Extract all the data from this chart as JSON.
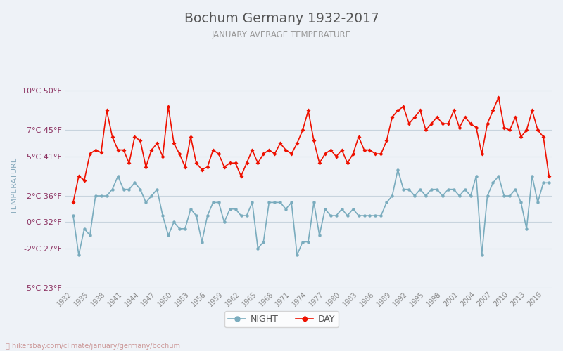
{
  "title": "Bochum Germany 1932-2017",
  "subtitle": "JANUARY AVERAGE TEMPERATURE",
  "ylabel": "TEMPERATURE",
  "legend_night": "NIGHT",
  "legend_day": "DAY",
  "years": [
    1932,
    1933,
    1934,
    1935,
    1936,
    1937,
    1938,
    1939,
    1940,
    1941,
    1942,
    1943,
    1944,
    1945,
    1946,
    1947,
    1948,
    1949,
    1950,
    1951,
    1952,
    1953,
    1954,
    1955,
    1956,
    1957,
    1958,
    1959,
    1960,
    1961,
    1962,
    1963,
    1964,
    1965,
    1966,
    1967,
    1968,
    1969,
    1970,
    1971,
    1972,
    1973,
    1974,
    1975,
    1976,
    1977,
    1978,
    1979,
    1980,
    1981,
    1982,
    1983,
    1984,
    1985,
    1986,
    1987,
    1988,
    1989,
    1990,
    1991,
    1992,
    1993,
    1994,
    1995,
    1996,
    1997,
    1998,
    1999,
    2000,
    2001,
    2002,
    2003,
    2004,
    2005,
    2006,
    2007,
    2008,
    2009,
    2010,
    2011,
    2012,
    2013,
    2014,
    2015,
    2016,
    2017
  ],
  "day": [
    1.5,
    3.5,
    3.2,
    5.2,
    5.5,
    5.3,
    8.5,
    6.5,
    5.5,
    5.5,
    4.5,
    6.5,
    6.2,
    4.2,
    5.5,
    6.0,
    5.0,
    8.8,
    6.0,
    5.2,
    4.2,
    6.5,
    4.5,
    4.0,
    4.2,
    5.5,
    5.2,
    4.2,
    4.5,
    4.5,
    3.5,
    4.5,
    5.5,
    4.5,
    5.2,
    5.5,
    5.2,
    6.0,
    5.5,
    5.2,
    6.0,
    7.0,
    8.5,
    6.2,
    4.5,
    5.2,
    5.5,
    5.0,
    5.5,
    4.5,
    5.2,
    6.5,
    5.5,
    5.5,
    5.2,
    5.2,
    6.2,
    8.0,
    8.5,
    8.8,
    7.5,
    8.0,
    8.5,
    7.0,
    7.5,
    8.0,
    7.5,
    7.5,
    8.5,
    7.2,
    8.0,
    7.5,
    7.2,
    5.2,
    7.5,
    8.5,
    9.5,
    7.2,
    7.0,
    8.0,
    6.5,
    7.0,
    8.5,
    7.0,
    6.5,
    3.5
  ],
  "night": [
    0.5,
    -2.5,
    -0.5,
    -1.0,
    2.0,
    2.0,
    2.0,
    2.5,
    3.5,
    2.5,
    2.5,
    3.0,
    2.5,
    1.5,
    2.0,
    2.5,
    0.5,
    -1.0,
    0.0,
    -0.5,
    -0.5,
    1.0,
    0.5,
    -1.5,
    0.5,
    1.5,
    1.5,
    0.0,
    1.0,
    1.0,
    0.5,
    0.5,
    1.5,
    -2.0,
    -1.5,
    1.5,
    1.5,
    1.5,
    1.0,
    1.5,
    -2.5,
    -1.5,
    -1.5,
    1.5,
    -1.0,
    1.0,
    0.5,
    0.5,
    1.0,
    0.5,
    1.0,
    0.5,
    0.5,
    0.5,
    0.5,
    0.5,
    1.5,
    2.0,
    4.0,
    2.5,
    2.5,
    2.0,
    2.5,
    2.0,
    2.5,
    2.5,
    2.0,
    2.5,
    2.5,
    2.0,
    2.5,
    2.0,
    3.5,
    -2.5,
    2.0,
    3.0,
    3.5,
    2.0,
    2.0,
    2.5,
    1.5,
    -0.5,
    3.5,
    1.5,
    3.0,
    3.0
  ],
  "ylim_min": -5,
  "ylim_max": 10.5,
  "yticks_celsius": [
    -5,
    -2,
    0,
    2,
    5,
    7,
    10
  ],
  "yticks_fahrenheit": [
    23,
    27,
    32,
    36,
    41,
    45,
    50
  ],
  "xtick_years": [
    1932,
    1935,
    1938,
    1941,
    1944,
    1947,
    1950,
    1953,
    1956,
    1959,
    1962,
    1965,
    1968,
    1971,
    1974,
    1977,
    1980,
    1983,
    1986,
    1989,
    1992,
    1995,
    1998,
    2001,
    2004,
    2007,
    2010,
    2013,
    2016
  ],
  "day_color": "#ee1100",
  "night_color": "#7aacbe",
  "grid_color": "#c8d4de",
  "bg_color": "#eef2f7",
  "plot_bg_color": "#eef2f7",
  "title_color": "#555555",
  "subtitle_color": "#999999",
  "ytick_color": "#8b3060",
  "xtick_color": "#888888",
  "ylabel_color": "#8aacbe",
  "url_text": "hikersbay.com/climate/january/germany/bochum",
  "url_icon": "🔑"
}
